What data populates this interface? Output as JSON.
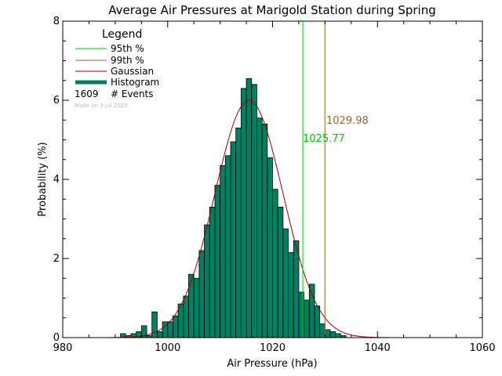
{
  "chart_data": {
    "type": "bar",
    "title": "Average Air Pressures at Marigold Station during Spring",
    "xlabel": "Air Pressure (hPa)",
    "ylabel": "Probability (%)",
    "xlim": [
      980,
      1060
    ],
    "ylim": [
      0,
      8
    ],
    "xticks": [
      "980",
      "1000",
      "1020",
      "1040",
      "1060"
    ],
    "yticks": [
      "0",
      "2",
      "4",
      "6",
      "8"
    ],
    "bin_width": 1,
    "bins_start": [
      991,
      992,
      993,
      994,
      995,
      996,
      997,
      998,
      999,
      1000,
      1001,
      1002,
      1003,
      1004,
      1005,
      1006,
      1007,
      1008,
      1009,
      1010,
      1011,
      1012,
      1013,
      1014,
      1015,
      1016,
      1017,
      1018,
      1019,
      1020,
      1021,
      1022,
      1023,
      1024,
      1025,
      1026,
      1027,
      1028,
      1029,
      1030,
      1031,
      1032,
      1033
    ],
    "histogram": [
      0.1,
      0.05,
      0.1,
      0.15,
      0.3,
      0.05,
      0.65,
      0.15,
      0.4,
      0.4,
      0.55,
      0.85,
      1.05,
      1.6,
      1.5,
      2.2,
      2.85,
      3.3,
      3.85,
      4.35,
      4.6,
      4.95,
      5.3,
      6.3,
      6.55,
      6.4,
      5.55,
      5.4,
      4.55,
      3.75,
      3.3,
      2.75,
      2.15,
      2.45,
      1.15,
      0.95,
      1.35,
      0.8,
      0.35,
      0.2,
      0.15,
      0.1,
      0.05
    ],
    "gaussian": {
      "mean": 1015.5,
      "sigma": 6.5,
      "peak": 6.0
    },
    "percentile_95": {
      "label": "95th %",
      "value": 1025.77,
      "text": "1025.77",
      "color": "#00cc00"
    },
    "percentile_99": {
      "label": "99th %",
      "value": 1029.98,
      "text": "1029.98",
      "color": "#a0622d"
    },
    "colors": {
      "histogram": "#008060",
      "gaussian": "#a00000",
      "p95": "#00cc00",
      "p99": "#a0622d"
    },
    "legend": {
      "title": "Legend",
      "items": [
        {
          "label": "95th %",
          "color": "#00cc00",
          "style": "line"
        },
        {
          "label": "99th %",
          "color": "#a0622d",
          "style": "line"
        },
        {
          "label": "Gaussian",
          "color": "#a00000",
          "style": "line"
        },
        {
          "label": "Histogram",
          "color": "#008060",
          "style": "thick"
        }
      ],
      "events_count": "1609",
      "events_label": "# Events"
    },
    "made_on": "Made on 3 Jul 2025"
  }
}
